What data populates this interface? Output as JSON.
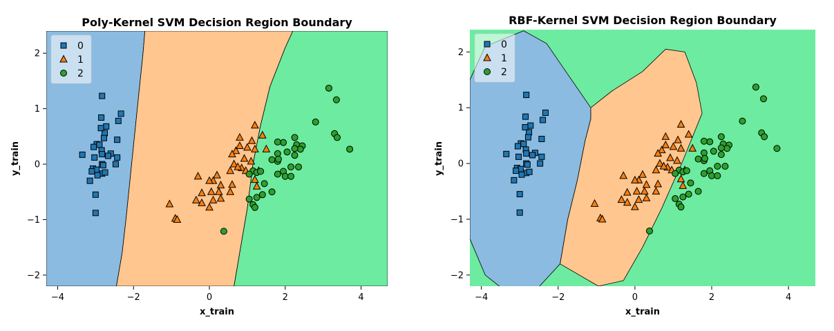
{
  "chart_data": [
    {
      "type": "scatter",
      "title": "Poly-Kernel SVM Decision Region Boundary",
      "xlabel": "x_train",
      "ylabel": "y_train",
      "xlim": [
        -4.3,
        4.7
      ],
      "ylim": [
        -2.2,
        2.4
      ],
      "xticks": [
        -4,
        -2,
        0,
        2,
        4
      ],
      "yticks": [
        -2,
        -1,
        0,
        1,
        2
      ],
      "xtick_labels": [
        "−4",
        "−2",
        "0",
        "2",
        "4"
      ],
      "ytick_labels": [
        "−2",
        "−1",
        "0",
        "1",
        "2"
      ],
      "legend_position": "top-left",
      "region_colors": {
        "0": "#8bbbe0",
        "1": "#ffc68f",
        "2": "#6deba0"
      },
      "regions": [
        {
          "class": "0",
          "polygon": [
            [
              -4.3,
              2.4
            ],
            [
              -1.7,
              2.4
            ],
            [
              -1.75,
              2.0
            ],
            [
              -1.9,
              1.0
            ],
            [
              -2.05,
              0.0
            ],
            [
              -2.2,
              -1.0
            ],
            [
              -2.3,
              -1.6
            ],
            [
              -2.45,
              -2.2
            ],
            [
              -4.3,
              -2.2
            ]
          ]
        },
        {
          "class": "1",
          "polygon": [
            [
              -1.7,
              2.4
            ],
            [
              2.2,
              2.4
            ],
            [
              2.0,
              2.1
            ],
            [
              1.6,
              1.4
            ],
            [
              1.35,
              0.7
            ],
            [
              1.15,
              0.0
            ],
            [
              1.0,
              -0.8
            ],
            [
              0.8,
              -1.6
            ],
            [
              0.65,
              -2.2
            ],
            [
              -2.45,
              -2.2
            ],
            [
              -2.3,
              -1.6
            ],
            [
              -2.2,
              -1.0
            ],
            [
              -2.05,
              0.0
            ],
            [
              -1.9,
              1.0
            ],
            [
              -1.75,
              2.0
            ]
          ]
        },
        {
          "class": "2",
          "polygon": [
            [
              2.2,
              2.4
            ],
            [
              4.7,
              2.4
            ],
            [
              4.7,
              -2.2
            ],
            [
              0.65,
              -2.2
            ],
            [
              0.8,
              -1.6
            ],
            [
              1.0,
              -0.8
            ],
            [
              1.15,
              0.0
            ],
            [
              1.35,
              0.7
            ],
            [
              1.6,
              1.4
            ],
            [
              2.0,
              2.1
            ]
          ]
        }
      ]
    },
    {
      "type": "scatter",
      "title": "RBF-Kernel SVM Decision Region Boundary",
      "xlabel": "x_train",
      "ylabel": "y_train",
      "xlim": [
        -4.3,
        4.7
      ],
      "ylim": [
        -2.2,
        2.4
      ],
      "xticks": [
        -4,
        -2,
        0,
        2,
        4
      ],
      "yticks": [
        -2,
        -1,
        0,
        1,
        2
      ],
      "xtick_labels": [
        "−4",
        "−2",
        "0",
        "2",
        "4"
      ],
      "ytick_labels": [
        "−2",
        "−1",
        "0",
        "1",
        "2"
      ],
      "legend_position": "top-left",
      "region_colors": {
        "0": "#8bbbe0",
        "1": "#ffc68f",
        "2": "#6deba0"
      },
      "background_class": "2",
      "regions": [
        {
          "class": "0",
          "polygon": [
            [
              -2.9,
              2.38
            ],
            [
              -2.3,
              2.15
            ],
            [
              -1.8,
              1.65
            ],
            [
              -1.15,
              1.0
            ],
            [
              -1.15,
              0.8
            ],
            [
              -1.3,
              0.4
            ],
            [
              -1.5,
              -0.3
            ],
            [
              -1.75,
              -1.0
            ],
            [
              -1.95,
              -1.8
            ],
            [
              -2.55,
              -2.25
            ],
            [
              -3.35,
              -2.3
            ],
            [
              -3.9,
              -2.0
            ],
            [
              -4.3,
              -1.35
            ],
            [
              -4.3,
              1.5
            ],
            [
              -3.9,
              2.1
            ]
          ]
        },
        {
          "class": "1",
          "polygon": [
            [
              -1.15,
              1.0
            ],
            [
              -0.6,
              1.3
            ],
            [
              0.2,
              1.65
            ],
            [
              0.8,
              2.05
            ],
            [
              1.3,
              2.0
            ],
            [
              1.6,
              1.45
            ],
            [
              1.75,
              0.9
            ],
            [
              1.25,
              0.05
            ],
            [
              0.7,
              -0.8
            ],
            [
              0.2,
              -1.5
            ],
            [
              -0.3,
              -2.1
            ],
            [
              -0.95,
              -2.2
            ],
            [
              -1.95,
              -1.8
            ],
            [
              -1.75,
              -1.0
            ],
            [
              -1.5,
              -0.3
            ],
            [
              -1.3,
              0.4
            ],
            [
              -1.15,
              0.8
            ]
          ]
        }
      ]
    }
  ],
  "points": {
    "colors": {
      "0": "#1f77b4",
      "1": "#ff7f0e",
      "2": "#2ca02c"
    },
    "markers": {
      "0": "square",
      "1": "triangle",
      "2": "circle"
    },
    "class0": [
      [
        -2.83,
        1.23
      ],
      [
        -2.85,
        0.84
      ],
      [
        -2.33,
        0.91
      ],
      [
        -2.4,
        0.78
      ],
      [
        -2.72,
        0.68
      ],
      [
        -2.76,
        0.56
      ],
      [
        -2.86,
        0.65
      ],
      [
        -2.78,
        0.47
      ],
      [
        -2.97,
        0.36
      ],
      [
        -3.05,
        0.31
      ],
      [
        -2.9,
        0.35
      ],
      [
        -2.84,
        0.25
      ],
      [
        -2.6,
        0.19
      ],
      [
        -2.43,
        0.44
      ],
      [
        -3.35,
        0.17
      ],
      [
        -2.83,
        0.18
      ],
      [
        -2.67,
        0.15
      ],
      [
        -3.03,
        0.12
      ],
      [
        -2.43,
        0.12
      ],
      [
        -2.47,
        0.0
      ],
      [
        -3.07,
        -0.08
      ],
      [
        -2.83,
        0.0
      ],
      [
        -2.83,
        -0.17
      ],
      [
        -2.98,
        -0.1
      ],
      [
        -3.1,
        -0.13
      ],
      [
        -2.75,
        -0.15
      ],
      [
        -2.8,
        -0.02
      ],
      [
        -2.95,
        -0.2
      ],
      [
        -3.15,
        -0.3
      ],
      [
        -3.0,
        -0.55
      ],
      [
        -3.0,
        -0.88
      ]
    ],
    "class1": [
      [
        1.2,
        0.7
      ],
      [
        1.4,
        0.52
      ],
      [
        0.8,
        0.48
      ],
      [
        1.12,
        0.42
      ],
      [
        1.5,
        0.27
      ],
      [
        1.2,
        0.27
      ],
      [
        0.7,
        0.24
      ],
      [
        1.0,
        0.3
      ],
      [
        0.8,
        0.33
      ],
      [
        0.92,
        0.1
      ],
      [
        1.1,
        0.05
      ],
      [
        0.6,
        0.18
      ],
      [
        0.65,
        0.0
      ],
      [
        0.85,
        -0.07
      ],
      [
        0.75,
        -0.05
      ],
      [
        0.96,
        -0.12
      ],
      [
        -0.3,
        -0.22
      ],
      [
        0.2,
        -0.2
      ],
      [
        0.55,
        -0.12
      ],
      [
        1.3,
        -0.12
      ],
      [
        0.1,
        -0.3
      ],
      [
        0.0,
        -0.3
      ],
      [
        0.3,
        -0.38
      ],
      [
        0.25,
        -0.5
      ],
      [
        0.05,
        -0.5
      ],
      [
        -0.2,
        -0.52
      ],
      [
        -0.35,
        -0.65
      ],
      [
        -0.2,
        -0.7
      ],
      [
        0.1,
        -0.65
      ],
      [
        0.55,
        -0.5
      ],
      [
        0.6,
        -0.37
      ],
      [
        1.2,
        -0.28
      ],
      [
        1.25,
        -0.4
      ],
      [
        0.3,
        -0.62
      ],
      [
        0.0,
        -0.78
      ],
      [
        -1.05,
        -0.72
      ],
      [
        -0.9,
        -0.98
      ],
      [
        -0.85,
        -1.0
      ]
    ],
    "class2": [
      [
        3.15,
        1.37
      ],
      [
        3.35,
        1.16
      ],
      [
        2.8,
        0.76
      ],
      [
        3.3,
        0.55
      ],
      [
        3.37,
        0.48
      ],
      [
        2.25,
        0.48
      ],
      [
        3.7,
        0.27
      ],
      [
        1.95,
        0.39
      ],
      [
        1.8,
        0.4
      ],
      [
        2.3,
        0.35
      ],
      [
        2.45,
        0.33
      ],
      [
        2.4,
        0.27
      ],
      [
        2.25,
        0.28
      ],
      [
        2.05,
        0.22
      ],
      [
        1.8,
        0.19
      ],
      [
        2.25,
        0.16
      ],
      [
        1.65,
        0.08
      ],
      [
        1.8,
        0.05
      ],
      [
        1.82,
        0.09
      ],
      [
        2.15,
        -0.05
      ],
      [
        2.35,
        -0.05
      ],
      [
        1.95,
        -0.13
      ],
      [
        1.15,
        -0.12
      ],
      [
        1.25,
        -0.15
      ],
      [
        1.35,
        -0.13
      ],
      [
        1.05,
        -0.18
      ],
      [
        1.8,
        -0.18
      ],
      [
        2.0,
        -0.22
      ],
      [
        2.15,
        -0.22
      ],
      [
        1.45,
        -0.35
      ],
      [
        1.65,
        -0.5
      ],
      [
        1.4,
        -0.55
      ],
      [
        1.25,
        -0.6
      ],
      [
        1.05,
        -0.63
      ],
      [
        1.15,
        -0.73
      ],
      [
        1.2,
        -0.78
      ],
      [
        0.38,
        -1.21
      ]
    ]
  },
  "legend": {
    "entries": [
      {
        "label": "0",
        "class": "0"
      },
      {
        "label": "1",
        "class": "1"
      },
      {
        "label": "2",
        "class": "2"
      }
    ]
  }
}
